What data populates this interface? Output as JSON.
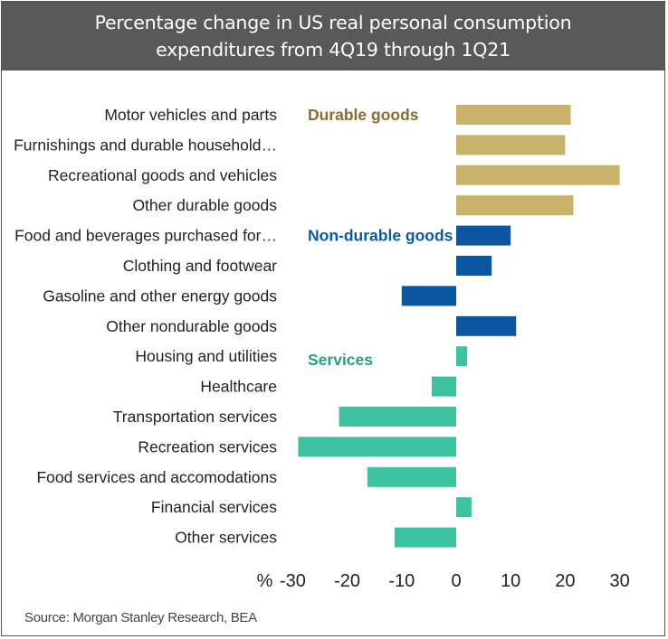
{
  "header": {
    "title_line1": "Percentage change in US real personal consumption",
    "title_line2": "expenditures from 4Q19 through 1Q21"
  },
  "source": "Source: Morgan Stanley Research, BEA",
  "chart_data": {
    "type": "bar",
    "orientation": "horizontal",
    "title": "Percentage change in US real personal consumption expenditures from 4Q19 through 1Q21",
    "xlabel": "%",
    "ylabel": "",
    "xlim": [
      -30,
      30
    ],
    "xticks": [
      -30,
      -20,
      -10,
      0,
      10,
      20,
      30
    ],
    "xtick_labels": [
      "-30",
      "-20",
      "-10",
      "0",
      "10",
      "20",
      "30"
    ],
    "axis_unit_label": "%",
    "grid": false,
    "groups": [
      {
        "name": "Durable goods",
        "color": "#c9b26a",
        "label_color": "#8a6d2e",
        "start_index": 0
      },
      {
        "name": "Non-durable goods",
        "color": "#0b56a0",
        "label_color": "#0a5aa8",
        "start_index": 4
      },
      {
        "name": "Services",
        "color": "#3dc29f",
        "label_color": "#2aa083",
        "start_index": 8
      }
    ],
    "categories": [
      "Motor vehicles and parts",
      "Furnishings and durable household…",
      "Recreational goods and vehicles",
      "Other durable goods",
      "Food and beverages purchased for…",
      "Clothing and footwear",
      "Gasoline and other energy goods",
      "Other nondurable goods",
      "Housing and utilities",
      "Healthcare",
      "Transportation services",
      "Recreation services",
      "Food services and accomodations",
      "Financial services",
      "Other services"
    ],
    "values": [
      21,
      20,
      30,
      21.5,
      10,
      6.5,
      -10,
      11,
      2,
      -4.5,
      -21.5,
      -29,
      -16.3,
      2.8,
      -11.3
    ],
    "category_group": [
      0,
      0,
      0,
      0,
      1,
      1,
      1,
      1,
      2,
      2,
      2,
      2,
      2,
      2,
      2
    ]
  }
}
